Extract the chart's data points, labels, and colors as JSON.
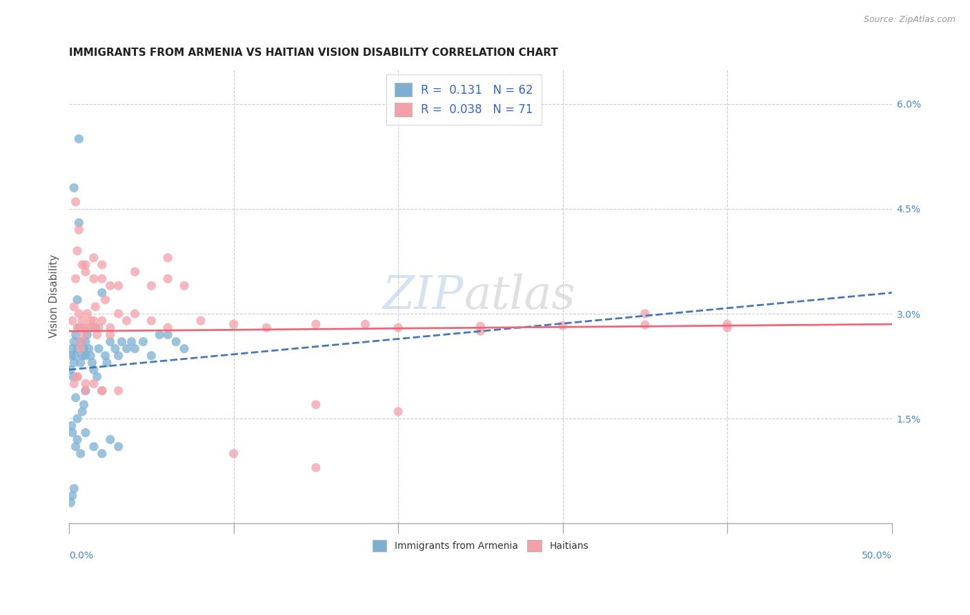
{
  "title": "IMMIGRANTS FROM ARMENIA VS HAITIAN VISION DISABILITY CORRELATION CHART",
  "source": "Source: ZipAtlas.com",
  "ylabel": "Vision Disability",
  "xmin": 0.0,
  "xmax": 50.0,
  "ymin": 0.0,
  "ymax": 6.5,
  "right_ytick_vals": [
    1.5,
    3.0,
    4.5,
    6.0
  ],
  "right_ytick_labels": [
    "1.5%",
    "3.0%",
    "4.5%",
    "6.0%"
  ],
  "vert_gridlines": [
    10,
    20,
    30,
    40
  ],
  "armenia_color": "#7BAFD4",
  "haiti_color": "#F4A0A8",
  "armenia_line_color": "#4477BB",
  "haiti_line_color": "#EE6677",
  "armenia_R": 0.131,
  "armenia_N": 62,
  "haiti_R": 0.038,
  "haiti_N": 71,
  "armenia_line_x0": 0.0,
  "armenia_line_y0": 2.2,
  "armenia_line_x1": 50.0,
  "armenia_line_y1": 3.3,
  "haiti_line_x0": 0.0,
  "haiti_line_y0": 2.75,
  "haiti_line_x1": 50.0,
  "haiti_line_y1": 2.85,
  "armenia_pts_x": [
    0.1,
    0.15,
    0.2,
    0.2,
    0.25,
    0.3,
    0.3,
    0.35,
    0.4,
    0.4,
    0.5,
    0.5,
    0.5,
    0.6,
    0.6,
    0.7,
    0.7,
    0.8,
    0.8,
    0.9,
    0.9,
    1.0,
    1.0,
    1.0,
    1.1,
    1.2,
    1.3,
    1.4,
    1.5,
    1.6,
    1.7,
    1.8,
    2.0,
    2.2,
    2.3,
    2.5,
    2.8,
    3.0,
    3.2,
    3.5,
    3.8,
    4.0,
    4.5,
    5.0,
    5.5,
    6.0,
    6.5,
    7.0,
    0.3,
    0.6,
    0.4,
    0.2,
    0.3,
    0.5,
    0.7,
    1.0,
    1.5,
    2.0,
    2.5,
    3.0,
    0.15,
    0.1
  ],
  "armenia_pts_y": [
    2.2,
    2.4,
    2.5,
    1.3,
    2.1,
    2.6,
    2.3,
    2.4,
    2.7,
    1.8,
    2.5,
    3.2,
    1.5,
    2.8,
    4.3,
    2.6,
    2.3,
    2.4,
    1.6,
    2.5,
    1.7,
    2.6,
    2.4,
    1.9,
    2.7,
    2.5,
    2.4,
    2.3,
    2.2,
    2.8,
    2.1,
    2.5,
    3.3,
    2.4,
    2.3,
    2.6,
    2.5,
    2.4,
    2.6,
    2.5,
    2.6,
    2.5,
    2.6,
    2.4,
    2.7,
    2.7,
    2.6,
    2.5,
    4.8,
    5.5,
    1.1,
    0.4,
    0.5,
    1.2,
    1.0,
    1.3,
    1.1,
    1.0,
    1.2,
    1.1,
    1.4,
    0.3
  ],
  "haiti_pts_x": [
    0.2,
    0.3,
    0.4,
    0.5,
    0.5,
    0.6,
    0.7,
    0.7,
    0.8,
    0.9,
    1.0,
    1.0,
    1.1,
    1.2,
    1.3,
    1.4,
    1.5,
    1.6,
    1.7,
    1.8,
    2.0,
    2.0,
    2.2,
    2.5,
    2.5,
    3.0,
    3.5,
    4.0,
    5.0,
    6.0,
    0.4,
    0.6,
    0.8,
    1.0,
    1.5,
    2.0,
    2.5,
    3.0,
    4.0,
    5.0,
    6.0,
    0.5,
    1.0,
    1.5,
    2.0,
    0.3,
    0.5,
    0.7,
    1.0,
    1.5,
    2.0,
    3.0,
    7.0,
    8.0,
    10.0,
    12.0,
    15.0,
    18.0,
    20.0,
    25.0,
    30.0,
    35.0,
    40.0,
    15.0,
    20.0,
    10.0,
    15.0,
    25.0,
    35.0,
    40.0,
    6.0
  ],
  "haiti_pts_y": [
    2.9,
    3.1,
    3.5,
    2.8,
    2.1,
    3.0,
    2.8,
    2.6,
    2.9,
    2.7,
    2.8,
    1.9,
    3.0,
    2.8,
    2.9,
    2.8,
    2.9,
    3.1,
    2.7,
    2.8,
    2.9,
    1.9,
    3.2,
    2.8,
    2.7,
    3.0,
    2.9,
    3.0,
    2.9,
    2.8,
    4.6,
    4.2,
    3.7,
    3.6,
    3.5,
    3.5,
    3.4,
    3.4,
    3.6,
    3.4,
    3.8,
    3.9,
    3.7,
    3.8,
    3.7,
    2.0,
    2.1,
    2.5,
    2.0,
    2.0,
    1.9,
    1.9,
    3.4,
    2.9,
    2.85,
    2.8,
    2.85,
    2.85,
    2.8,
    2.82,
    2.83,
    2.84,
    2.85,
    1.7,
    1.6,
    1.0,
    0.8,
    2.75,
    3.0,
    2.8,
    3.5
  ]
}
